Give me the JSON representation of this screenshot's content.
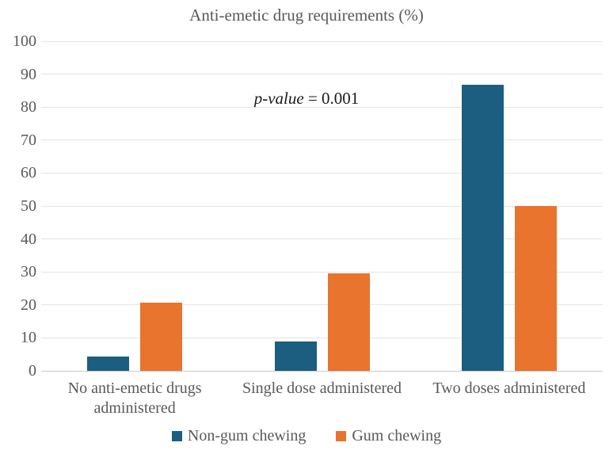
{
  "chart_data": {
    "type": "bar",
    "title": "Anti-emetic drug requirements (%)",
    "annotation": {
      "italic_part": "p-value",
      "normal_part": " = 0.001"
    },
    "categories": [
      "No anti-emetic drugs administered",
      "Single dose administered",
      "Two doses administered"
    ],
    "series": [
      {
        "name": "Non-gum chewing",
        "color": "#1B5E80",
        "values": [
          4.3,
          8.9,
          86.7
        ]
      },
      {
        "name": "Gum chewing",
        "color": "#E8742E",
        "values": [
          20.6,
          29.5,
          50
        ]
      }
    ],
    "xlabel": "",
    "ylabel": "",
    "ylim": [
      0,
      100
    ],
    "yticks": [
      0,
      10,
      20,
      30,
      40,
      50,
      60,
      70,
      80,
      90,
      100
    ],
    "grid": "horizontal",
    "legend_position": "bottom"
  },
  "style_colors": {
    "text": "#595959",
    "annotation_text": "#1a1a1a",
    "gridline": "#e4e4e4",
    "axis_baseline": "#c9c9c9",
    "background": "#ffffff"
  }
}
